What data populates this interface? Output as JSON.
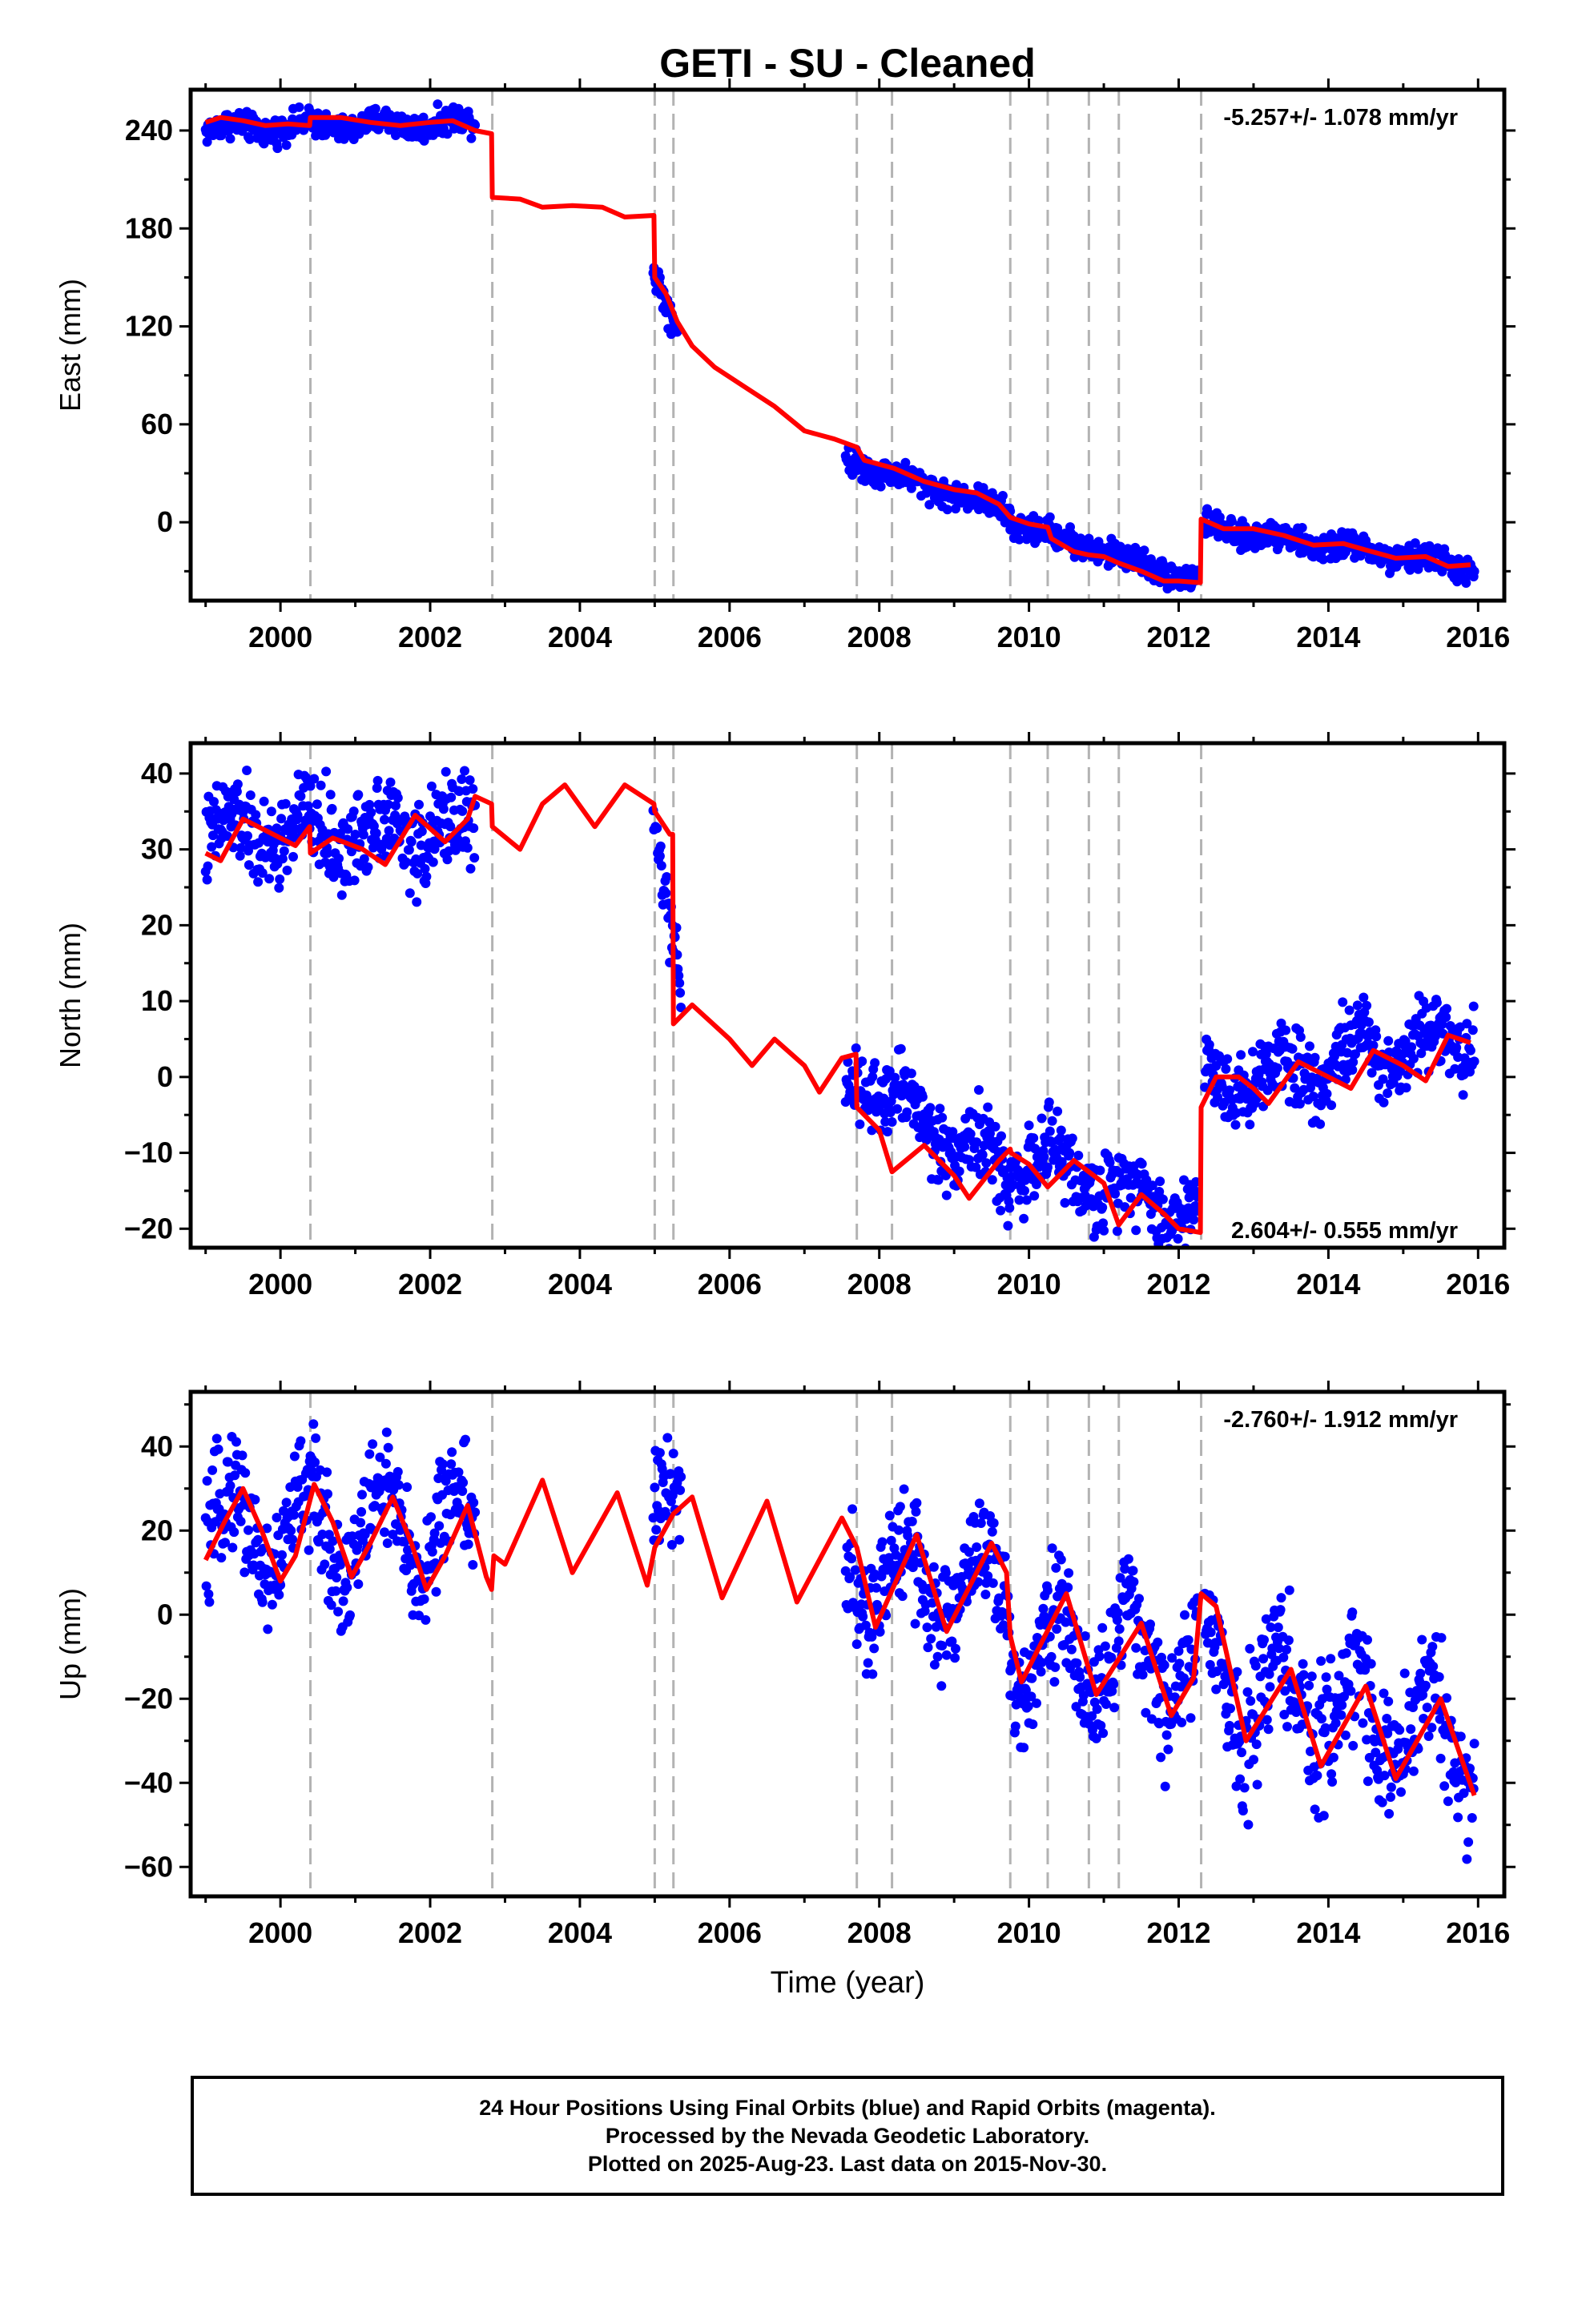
{
  "title": "GETI  - SU - Cleaned",
  "colors": {
    "data": "#0000ff",
    "model": "#ff0000",
    "breaks": "#b3b3b3"
  },
  "chart_data": [
    {
      "type": "scatter",
      "ylabel": "East (mm)",
      "xlabel": "",
      "xlim": [
        1998.8,
        2016.35
      ],
      "ylim": [
        -48,
        265
      ],
      "xticks": [
        2000,
        2002,
        2004,
        2006,
        2008,
        2010,
        2012,
        2014,
        2016
      ],
      "yticks": [
        0,
        60,
        120,
        180,
        240
      ],
      "rate_label": "-5.257+/- 1.078 mm/yr",
      "rate_pos": "top-right",
      "breaks": [
        2000.4,
        2002.83,
        2005.0,
        2005.25,
        2007.7,
        2008.17,
        2009.75,
        2010.25,
        2010.8,
        2011.2,
        2012.3
      ],
      "model": [
        [
          1999.0,
          245
        ],
        [
          1999.2,
          248
        ],
        [
          1999.5,
          246
        ],
        [
          1999.8,
          243
        ],
        [
          2000.1,
          244
        ],
        [
          2000.39,
          243
        ],
        [
          2000.4,
          248
        ],
        [
          2000.8,
          248
        ],
        [
          2001.2,
          245
        ],
        [
          2001.6,
          243
        ],
        [
          2002.0,
          245
        ],
        [
          2002.3,
          246
        ],
        [
          2002.6,
          240
        ],
        [
          2002.82,
          238
        ],
        [
          2002.83,
          199
        ],
        [
          2003.2,
          198
        ],
        [
          2003.5,
          193
        ],
        [
          2003.9,
          194
        ],
        [
          2004.3,
          193
        ],
        [
          2004.6,
          187
        ],
        [
          2004.99,
          188
        ],
        [
          2005.0,
          150
        ],
        [
          2005.15,
          140
        ],
        [
          2005.3,
          123
        ],
        [
          2005.5,
          108
        ],
        [
          2005.8,
          95
        ],
        [
          2006.2,
          83
        ],
        [
          2006.6,
          71
        ],
        [
          2007.0,
          56
        ],
        [
          2007.4,
          51
        ],
        [
          2007.7,
          46
        ],
        [
          2007.8,
          38
        ],
        [
          2008.2,
          33
        ],
        [
          2008.6,
          25
        ],
        [
          2009.0,
          20
        ],
        [
          2009.3,
          18
        ],
        [
          2009.6,
          11
        ],
        [
          2009.75,
          3
        ],
        [
          2010.0,
          -1
        ],
        [
          2010.25,
          -3
        ],
        [
          2010.3,
          -10
        ],
        [
          2010.6,
          -18
        ],
        [
          2010.8,
          -20
        ],
        [
          2011.0,
          -21
        ],
        [
          2011.2,
          -25
        ],
        [
          2011.5,
          -30
        ],
        [
          2011.8,
          -36
        ],
        [
          2012.0,
          -36
        ],
        [
          2012.29,
          -37
        ],
        [
          2012.3,
          2
        ],
        [
          2012.6,
          -4
        ],
        [
          2013.0,
          -4
        ],
        [
          2013.4,
          -8
        ],
        [
          2013.8,
          -14
        ],
        [
          2014.2,
          -13
        ],
        [
          2014.5,
          -17
        ],
        [
          2014.9,
          -22
        ],
        [
          2015.3,
          -21
        ],
        [
          2015.6,
          -27
        ],
        [
          2015.9,
          -26
        ]
      ],
      "points_segments": [
        {
          "x": [
            1999.0,
            2002.6
          ],
          "y0": 241,
          "y1": 245,
          "amp": 3,
          "noise": 4
        },
        {
          "x": [
            2004.98,
            2005.3
          ],
          "y0": 155,
          "y1": 118,
          "amp": 0,
          "noise": 5
        },
        {
          "x": [
            2007.55,
            2009.75
          ],
          "y0": 39,
          "y1": 6,
          "amp": 2,
          "noise": 4
        },
        {
          "x": [
            2009.75,
            2012.25
          ],
          "y0": 0,
          "y1": -36,
          "amp": 2,
          "noise": 4
        },
        {
          "x": [
            2012.35,
            2015.95
          ],
          "y0": -3,
          "y1": -28,
          "amp": 3,
          "noise": 4
        }
      ]
    },
    {
      "type": "scatter",
      "ylabel": "North (mm)",
      "xlabel": "",
      "xlim": [
        1998.8,
        2016.35
      ],
      "ylim": [
        -22.5,
        44
      ],
      "xticks": [
        2000,
        2002,
        2004,
        2006,
        2008,
        2010,
        2012,
        2014,
        2016
      ],
      "yticks": [
        -20,
        -10,
        0,
        10,
        20,
        30,
        40
      ],
      "rate_label": "2.604+/- 0.555 mm/yr",
      "rate_pos": "bottom-right",
      "breaks": [
        2000.4,
        2002.83,
        2005.0,
        2005.25,
        2007.7,
        2008.17,
        2009.75,
        2010.25,
        2010.8,
        2011.2,
        2012.3
      ],
      "model": [
        [
          1999.0,
          29.5
        ],
        [
          1999.2,
          28.5
        ],
        [
          1999.5,
          34
        ],
        [
          1999.9,
          32
        ],
        [
          2000.2,
          30.5
        ],
        [
          2000.39,
          33
        ],
        [
          2000.4,
          29.5
        ],
        [
          2000.7,
          31.5
        ],
        [
          2001.1,
          30
        ],
        [
          2001.4,
          28
        ],
        [
          2001.8,
          34.5
        ],
        [
          2002.2,
          31
        ],
        [
          2002.5,
          34
        ],
        [
          2002.6,
          37
        ],
        [
          2002.82,
          36
        ],
        [
          2002.83,
          33
        ],
        [
          2003.2,
          30
        ],
        [
          2003.5,
          36
        ],
        [
          2003.8,
          38.5
        ],
        [
          2004.2,
          33
        ],
        [
          2004.6,
          38.5
        ],
        [
          2004.99,
          36
        ],
        [
          2005.0,
          35
        ],
        [
          2005.2,
          32
        ],
        [
          2005.24,
          32
        ],
        [
          2005.25,
          7
        ],
        [
          2005.5,
          9.5
        ],
        [
          2006.0,
          5
        ],
        [
          2006.3,
          1.5
        ],
        [
          2006.6,
          5
        ],
        [
          2007.0,
          1.5
        ],
        [
          2007.2,
          -2
        ],
        [
          2007.5,
          2.5
        ],
        [
          2007.69,
          3
        ],
        [
          2007.7,
          -4
        ],
        [
          2008.0,
          -7
        ],
        [
          2008.17,
          -12.5
        ],
        [
          2008.6,
          -9
        ],
        [
          2009.0,
          -13
        ],
        [
          2009.2,
          -16
        ],
        [
          2009.6,
          -11
        ],
        [
          2009.75,
          -9.5
        ],
        [
          2009.76,
          -10
        ],
        [
          2010.0,
          -11.5
        ],
        [
          2010.25,
          -14.5
        ],
        [
          2010.6,
          -11
        ],
        [
          2010.8,
          -12.5
        ],
        [
          2011.0,
          -14
        ],
        [
          2011.2,
          -19.5
        ],
        [
          2011.5,
          -15.5
        ],
        [
          2011.8,
          -18
        ],
        [
          2012.0,
          -20
        ],
        [
          2012.29,
          -20.5
        ],
        [
          2012.3,
          -4
        ],
        [
          2012.5,
          0
        ],
        [
          2012.8,
          0
        ],
        [
          2013.0,
          -1.5
        ],
        [
          2013.2,
          -3.5
        ],
        [
          2013.6,
          2
        ],
        [
          2014.0,
          0
        ],
        [
          2014.3,
          -1.5
        ],
        [
          2014.6,
          3.5
        ],
        [
          2015.0,
          1.5
        ],
        [
          2015.3,
          -0.5
        ],
        [
          2015.6,
          5.5
        ],
        [
          2015.9,
          4.5
        ]
      ],
      "points_segments": [
        {
          "x": [
            1999.0,
            2002.6
          ],
          "y0": 32,
          "y1": 32.5,
          "amp": 2.5,
          "noise": 3
        },
        {
          "x": [
            2004.98,
            2005.35
          ],
          "y0": 34,
          "y1": 11,
          "amp": 0,
          "noise": 2
        },
        {
          "x": [
            2007.55,
            2009.75
          ],
          "y0": 1,
          "y1": -13,
          "amp": 2.5,
          "noise": 2.5
        },
        {
          "x": [
            2009.75,
            2012.25
          ],
          "y0": -10,
          "y1": -18,
          "amp": 2.5,
          "noise": 2.5
        },
        {
          "x": [
            2012.35,
            2015.95
          ],
          "y0": -1,
          "y1": 6,
          "amp": 2.5,
          "noise": 2.5
        }
      ]
    },
    {
      "type": "scatter",
      "ylabel": "Up (mm)",
      "xlabel": "Time (year)",
      "xlim": [
        1998.8,
        2016.35
      ],
      "ylim": [
        -67,
        53
      ],
      "xticks": [
        2000,
        2002,
        2004,
        2006,
        2008,
        2010,
        2012,
        2014,
        2016
      ],
      "yticks": [
        -60,
        -40,
        -20,
        0,
        20,
        40
      ],
      "rate_label": "-2.760+/- 1.912 mm/yr",
      "rate_pos": "top-right",
      "breaks": [
        2000.4,
        2002.83,
        2005.0,
        2005.25,
        2007.7,
        2008.17,
        2009.75,
        2010.25,
        2010.8,
        2011.2,
        2012.3
      ],
      "model": [
        [
          1999.0,
          13
        ],
        [
          1999.25,
          22
        ],
        [
          1999.5,
          30
        ],
        [
          1999.75,
          20
        ],
        [
          2000.0,
          8
        ],
        [
          2000.2,
          14
        ],
        [
          2000.45,
          31
        ],
        [
          2000.7,
          22
        ],
        [
          2000.95,
          9
        ],
        [
          2001.2,
          17
        ],
        [
          2001.5,
          28
        ],
        [
          2001.75,
          17
        ],
        [
          2001.95,
          6
        ],
        [
          2002.2,
          14
        ],
        [
          2002.5,
          26
        ],
        [
          2002.75,
          9
        ],
        [
          2002.82,
          6
        ],
        [
          2002.85,
          14
        ],
        [
          2003.0,
          12
        ],
        [
          2003.5,
          32
        ],
        [
          2003.9,
          10
        ],
        [
          2004.5,
          29
        ],
        [
          2004.9,
          7
        ],
        [
          2005.0,
          16
        ],
        [
          2005.25,
          24
        ],
        [
          2005.5,
          28
        ],
        [
          2005.9,
          4
        ],
        [
          2006.5,
          27
        ],
        [
          2006.9,
          3
        ],
        [
          2007.5,
          23
        ],
        [
          2007.7,
          16
        ],
        [
          2007.95,
          -3
        ],
        [
          2008.5,
          19
        ],
        [
          2008.9,
          -4
        ],
        [
          2009.5,
          17
        ],
        [
          2009.7,
          10
        ],
        [
          2009.75,
          -5
        ],
        [
          2009.9,
          -16
        ],
        [
          2010.5,
          5
        ],
        [
          2010.9,
          -19
        ],
        [
          2011.5,
          -2
        ],
        [
          2011.9,
          -24
        ],
        [
          2012.2,
          -15
        ],
        [
          2012.3,
          5
        ],
        [
          2012.5,
          2
        ],
        [
          2012.9,
          -30
        ],
        [
          2013.5,
          -13
        ],
        [
          2013.9,
          -36
        ],
        [
          2014.5,
          -17
        ],
        [
          2014.9,
          -39
        ],
        [
          2015.5,
          -20
        ],
        [
          2015.95,
          -43
        ]
      ],
      "points_segments": [
        {
          "x": [
            1999.0,
            2002.6
          ],
          "y0": 20,
          "y1": 20,
          "amp": 11,
          "noise": 7
        },
        {
          "x": [
            2004.98,
            2005.35
          ],
          "y0": 26,
          "y1": 30,
          "amp": 0,
          "noise": 7
        },
        {
          "x": [
            2007.55,
            2009.75
          ],
          "y0": 10,
          "y1": 5,
          "amp": 11,
          "noise": 7
        },
        {
          "x": [
            2009.75,
            2012.25
          ],
          "y0": -8,
          "y1": -12,
          "amp": 11,
          "noise": 7
        },
        {
          "x": [
            2012.35,
            2015.95
          ],
          "y0": -15,
          "y1": -30,
          "amp": 11,
          "noise": 8
        }
      ]
    }
  ],
  "footer": {
    "line1": "24 Hour Positions Using Final Orbits (blue) and Rapid Orbits (magenta).",
    "line2": "Processed by the Nevada Geodetic Laboratory.",
    "line3": "Plotted on 2025-Aug-23. Last data on 2015-Nov-30."
  }
}
